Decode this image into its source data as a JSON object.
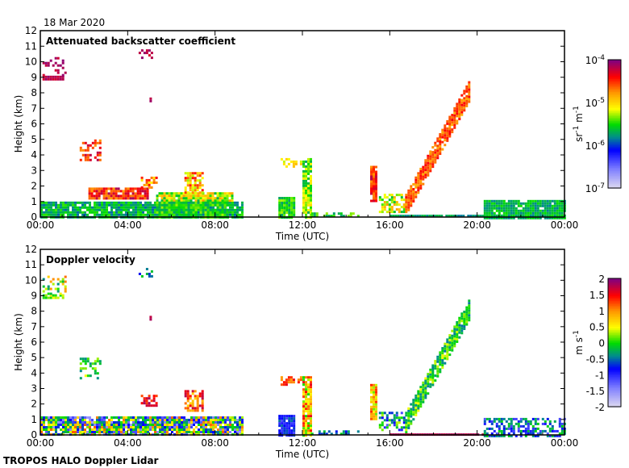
{
  "date_label": "18 Mar 2020",
  "footer_label": "TROPOS HALO Doppler Lidar",
  "chart_data": [
    {
      "type": "heatmap",
      "title": "Attenuated backscatter coefficient",
      "xlabel": "Time (UTC)",
      "ylabel": "Height (km)",
      "xlim": [
        0,
        24
      ],
      "ylim": [
        0,
        12
      ],
      "xticks": [
        "00:00",
        "04:00",
        "08:00",
        "12:00",
        "16:00",
        "20:00",
        "00:00"
      ],
      "yticks": [
        "0",
        "1",
        "2",
        "3",
        "4",
        "5",
        "6",
        "7",
        "8",
        "9",
        "10",
        "11",
        "12"
      ],
      "colorbar": {
        "label_base": "sr",
        "label_sup1": "-1",
        "label_unit2": " m",
        "label_sup2": "-1",
        "scale": "log",
        "range": [
          1e-07,
          0.0001
        ],
        "ticks": [
          {
            "base": "10",
            "exp": "-4"
          },
          {
            "base": "10",
            "exp": "-5"
          },
          {
            "base": "10",
            "exp": "-6"
          },
          {
            "base": "10",
            "exp": "-7"
          }
        ]
      },
      "regions": [
        {
          "t": [
            0,
            9.2
          ],
          "h": [
            0,
            1.0
          ],
          "level": 0.45,
          "spread": 0.08
        },
        {
          "t": [
            0.1,
            1.0
          ],
          "h": [
            8.9,
            9.1
          ],
          "level": 0.95,
          "spread": 0.04
        },
        {
          "t": [
            0.1,
            1.2
          ],
          "h": [
            9.2,
            10.3
          ],
          "level": 0.95,
          "spread": 0.04,
          "density": 0.3
        },
        {
          "t": [
            4.5,
            5.1
          ],
          "h": [
            10.3,
            10.8
          ],
          "level": 0.95,
          "spread": 0.04,
          "density": 0.4
        },
        {
          "t": [
            5.0,
            5.1
          ],
          "h": [
            7.5,
            7.7
          ],
          "level": 0.95,
          "spread": 0.02
        },
        {
          "t": [
            1.8,
            2.7
          ],
          "h": [
            3.7,
            5.0
          ],
          "level": 0.85,
          "spread": 0.1,
          "density": 0.5
        },
        {
          "t": [
            2.2,
            4.9
          ],
          "h": [
            1.2,
            1.9
          ],
          "level": 0.85,
          "spread": 0.12
        },
        {
          "t": [
            4.6,
            5.3
          ],
          "h": [
            1.9,
            2.6
          ],
          "level": 0.75,
          "spread": 0.12,
          "density": 0.6
        },
        {
          "t": [
            5.3,
            8.8
          ],
          "h": [
            1.0,
            1.6
          ],
          "level": 0.6,
          "spread": 0.15
        },
        {
          "t": [
            6.6,
            7.4
          ],
          "h": [
            1.6,
            2.9
          ],
          "level": 0.72,
          "spread": 0.15,
          "density": 0.7
        },
        {
          "t": [
            5.3,
            8.6
          ],
          "h": [
            0,
            1.0
          ],
          "level": 0.5,
          "spread": 0.08
        },
        {
          "t": [
            10.9,
            11.6
          ],
          "h": [
            0,
            1.3
          ],
          "level": 0.5,
          "spread": 0.08
        },
        {
          "t": [
            11.0,
            11.9
          ],
          "h": [
            3.2,
            3.8
          ],
          "level": 0.65,
          "spread": 0.06,
          "density": 0.5
        },
        {
          "t": [
            12.0,
            12.4
          ],
          "h": [
            0,
            3.8
          ],
          "level": 0.55,
          "spread": 0.12
        },
        {
          "t": [
            12.4,
            14.6
          ],
          "h": [
            0,
            0.3
          ],
          "level": 0.5,
          "spread": 0.08,
          "density": 0.6
        },
        {
          "t": [
            15.1,
            15.4
          ],
          "h": [
            1.0,
            3.3
          ],
          "level": 0.85,
          "spread": 0.1
        },
        {
          "t": [
            15.5,
            16.7
          ],
          "h": [
            0.4,
            1.5
          ],
          "level": 0.6,
          "spread": 0.15,
          "density": 0.6
        },
        {
          "t": [
            16.7,
            19.6
          ],
          "h": [
            1.0,
            8.3
          ],
          "level": 0.8,
          "spread": 0.08,
          "diagonal": true
        },
        {
          "t": [
            16.0,
            20.3
          ],
          "h": [
            0,
            0.15
          ],
          "level": 0.42,
          "spread": 0.04
        },
        {
          "t": [
            20.3,
            24
          ],
          "h": [
            0,
            1.1
          ],
          "level": 0.45,
          "spread": 0.06
        }
      ]
    },
    {
      "type": "heatmap",
      "title": "Doppler velocity",
      "xlabel": "Time (UTC)",
      "ylabel": "Height (km)",
      "xlim": [
        0,
        24
      ],
      "ylim": [
        0,
        12
      ],
      "xticks": [
        "00:00",
        "04:00",
        "08:00",
        "12:00",
        "16:00",
        "20:00",
        "00:00"
      ],
      "yticks": [
        "0",
        "1",
        "2",
        "3",
        "4",
        "5",
        "6",
        "7",
        "8",
        "9",
        "10",
        "11",
        "12"
      ],
      "colorbar": {
        "label_base": "m",
        "label_unit2": " s",
        "label_sup2": "-1",
        "scale": "linear",
        "range": [
          -2,
          2
        ],
        "ticks": [
          "2",
          "1.5",
          "1",
          "0.5",
          "0",
          "-0.5",
          "-1",
          "-1.5",
          "-2"
        ]
      },
      "regions": [
        {
          "t": [
            0,
            9.2
          ],
          "h": [
            0,
            1.2
          ],
          "level": 0.45,
          "spread": 0.35
        },
        {
          "t": [
            0.1,
            1.0
          ],
          "h": [
            8.9,
            9.1
          ],
          "level": 0.55,
          "spread": 0.1
        },
        {
          "t": [
            0.1,
            1.2
          ],
          "h": [
            9.2,
            10.3
          ],
          "level": 0.6,
          "spread": 0.2,
          "density": 0.3
        },
        {
          "t": [
            4.5,
            5.1
          ],
          "h": [
            10.3,
            10.8
          ],
          "level": 0.4,
          "spread": 0.1,
          "density": 0.4
        },
        {
          "t": [
            5.0,
            5.1
          ],
          "h": [
            7.5,
            7.7
          ],
          "level": 0.95,
          "spread": 0.02
        },
        {
          "t": [
            1.8,
            2.7
          ],
          "h": [
            3.7,
            5.0
          ],
          "level": 0.5,
          "spread": 0.12,
          "density": 0.5
        },
        {
          "t": [
            4.6,
            5.3
          ],
          "h": [
            1.9,
            2.6
          ],
          "level": 0.9,
          "spread": 0.1,
          "density": 0.6
        },
        {
          "t": [
            6.6,
            7.4
          ],
          "h": [
            1.6,
            2.9
          ],
          "level": 0.8,
          "spread": 0.15,
          "density": 0.7
        },
        {
          "t": [
            10.9,
            11.6
          ],
          "h": [
            0,
            1.3
          ],
          "level": 0.3,
          "spread": 0.08
        },
        {
          "t": [
            11.0,
            11.9
          ],
          "h": [
            3.2,
            3.8
          ],
          "level": 0.8,
          "spread": 0.1,
          "density": 0.5
        },
        {
          "t": [
            12.0,
            12.4
          ],
          "h": [
            0,
            3.8
          ],
          "level": 0.7,
          "spread": 0.2
        },
        {
          "t": [
            12.4,
            14.6
          ],
          "h": [
            0,
            0.3
          ],
          "level": 0.4,
          "spread": 0.1,
          "density": 0.5
        },
        {
          "t": [
            15.1,
            15.4
          ],
          "h": [
            1.0,
            3.3
          ],
          "level": 0.7,
          "spread": 0.15
        },
        {
          "t": [
            15.5,
            16.7
          ],
          "h": [
            0.4,
            1.5
          ],
          "level": 0.4,
          "spread": 0.2,
          "density": 0.6
        },
        {
          "t": [
            16.7,
            19.6
          ],
          "h": [
            1.0,
            8.3
          ],
          "level": 0.5,
          "spread": 0.12,
          "diagonal": true
        },
        {
          "t": [
            16.0,
            20.3
          ],
          "h": [
            0,
            0.1
          ],
          "level": 0.95,
          "spread": 0.02
        },
        {
          "t": [
            20.3,
            24
          ],
          "h": [
            0,
            1.1
          ],
          "level": 0.35,
          "spread": 0.15,
          "density": 0.6
        }
      ]
    }
  ]
}
